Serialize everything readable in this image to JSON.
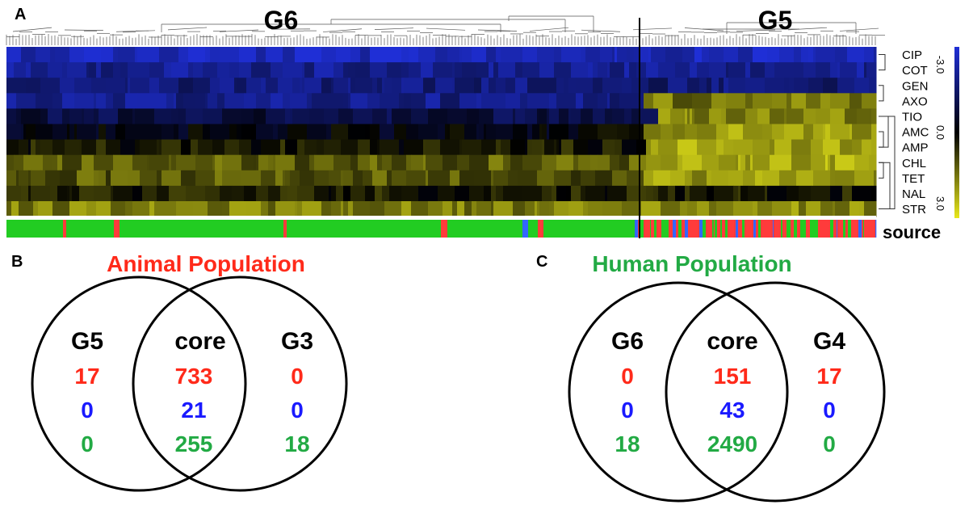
{
  "panels": {
    "a": "A",
    "b": "B",
    "c": "C"
  },
  "heatmap": {
    "group_left": "G6",
    "group_right": "G5",
    "rows": [
      "CIP",
      "COT",
      "GEN",
      "AXO",
      "TIO",
      "AMC",
      "AMP",
      "CHL",
      "TET",
      "NAL",
      "STR"
    ],
    "source_label": "source",
    "scale": {
      "min": "-3.0",
      "mid": "0.0",
      "max": "3.0",
      "colors": {
        "low": "#1f2fd6",
        "mid": "#000000",
        "high": "#e8e81a"
      }
    },
    "source_colors": {
      "animal": "#ff3b3b",
      "human": "#22cc22",
      "other": "#3366ff"
    }
  },
  "colors": {
    "animal": "#ff2a1a",
    "blue": "#1a1aff",
    "human": "#22aa44"
  },
  "venn_animal": {
    "title": "Animal Population",
    "left_label": "G5",
    "core_label": "core",
    "right_label": "G3",
    "left_values": [
      "17",
      "0",
      "0"
    ],
    "core_values": [
      "733",
      "21",
      "255"
    ],
    "right_values": [
      "0",
      "0",
      "18"
    ]
  },
  "venn_human": {
    "title": "Human Population",
    "left_label": "G6",
    "core_label": "core",
    "right_label": "G4",
    "left_values": [
      "0",
      "0",
      "18"
    ],
    "core_values": [
      "151",
      "43",
      "2490"
    ],
    "right_values": [
      "17",
      "0",
      "0"
    ]
  }
}
